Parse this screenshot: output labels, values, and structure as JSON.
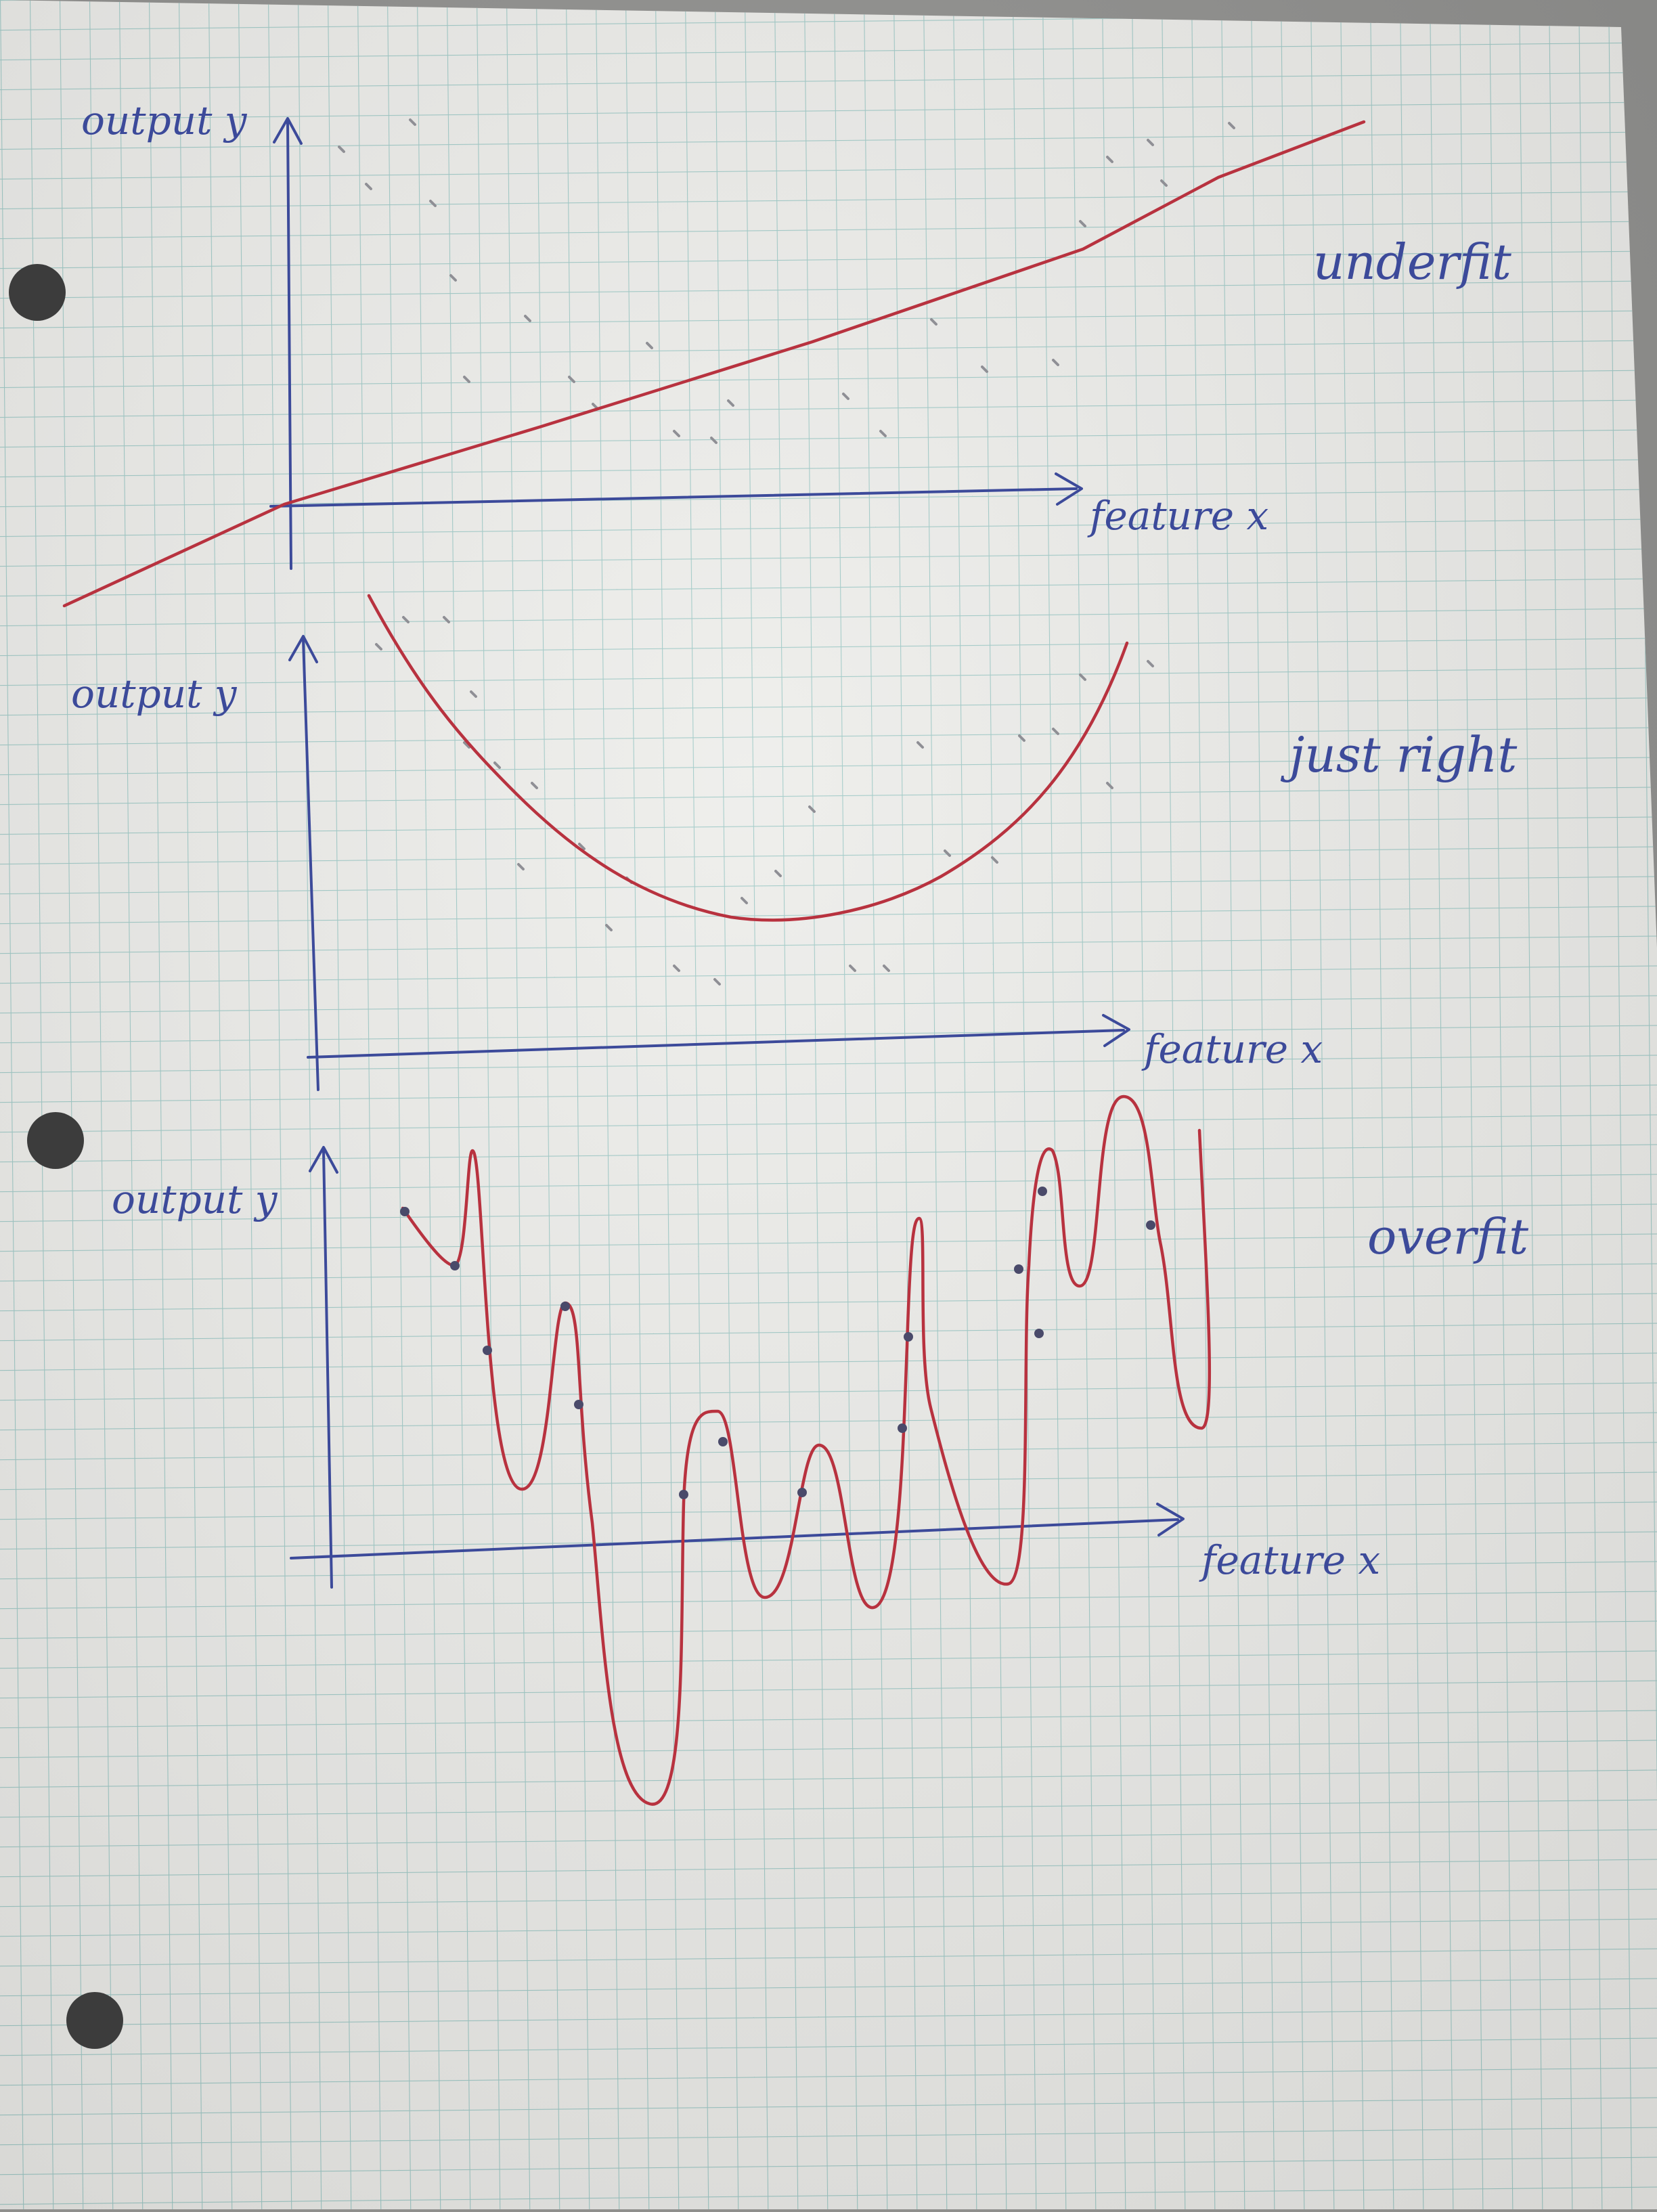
{
  "colors": {
    "paper": "#ededea",
    "grid": "#9fc9c6",
    "axis_ink": "#3c4a9a",
    "fit_ink": "#b8323f",
    "dot_ink": "#8f8f95",
    "hole": "#3c3c3c"
  },
  "chart_data": [
    {
      "type": "scatter",
      "label": "underfit",
      "xlabel": "feature x",
      "ylabel": "output y",
      "curve": "straight line",
      "grid": true
    },
    {
      "type": "scatter",
      "label": "just right",
      "xlabel": "feature x",
      "ylabel": "output y",
      "curve": "U-shaped",
      "grid": true
    },
    {
      "type": "scatter",
      "label": "overfit",
      "xlabel": "feature x",
      "ylabel": "output y",
      "curve": "wiggly",
      "grid": true
    }
  ]
}
